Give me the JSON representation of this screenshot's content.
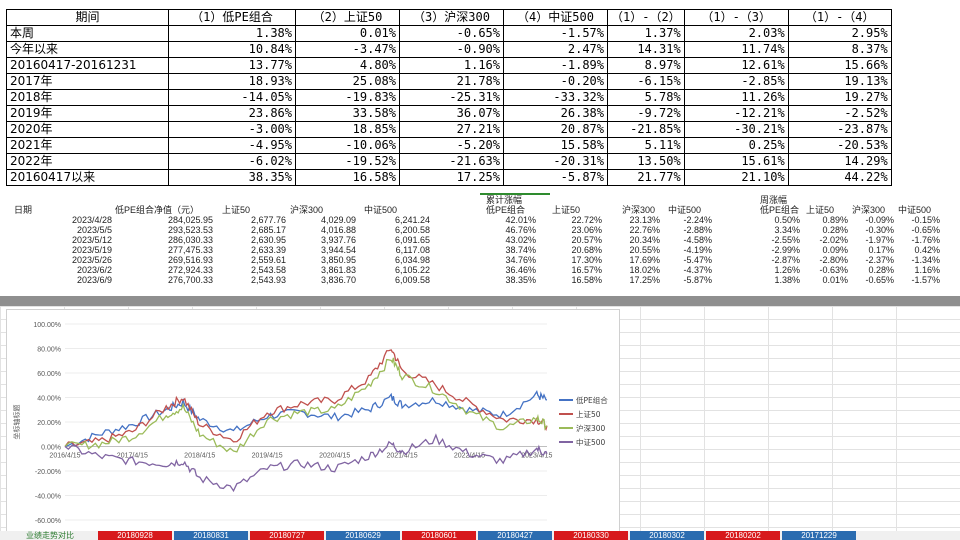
{
  "summary": {
    "headers": [
      "期间",
      "（1）低PE组合",
      "（2）上证50",
      "（3）沪深300",
      "（4）中证500",
      "（1）-（2）",
      "（1）-（3）",
      "（1）-（4）"
    ],
    "rows": [
      [
        "本周",
        "1.38%",
        "0.01%",
        "-0.65%",
        "-1.57%",
        "1.37%",
        "2.03%",
        "2.95%"
      ],
      [
        "今年以来",
        "10.84%",
        "-3.47%",
        "-0.90%",
        "2.47%",
        "14.31%",
        "11.74%",
        "8.37%"
      ],
      [
        "20160417-20161231",
        "13.77%",
        "4.80%",
        "1.16%",
        "-1.89%",
        "8.97%",
        "12.61%",
        "15.66%"
      ],
      [
        "2017年",
        "18.93%",
        "25.08%",
        "21.78%",
        "-0.20%",
        "-6.15%",
        "-2.85%",
        "19.13%"
      ],
      [
        "2018年",
        "-14.05%",
        "-19.83%",
        "-25.31%",
        "-33.32%",
        "5.78%",
        "11.26%",
        "19.27%"
      ],
      [
        "2019年",
        "23.86%",
        "33.58%",
        "36.07%",
        "26.38%",
        "-9.72%",
        "-12.21%",
        "-2.52%"
      ],
      [
        "2020年",
        "-3.00%",
        "18.85%",
        "27.21%",
        "20.87%",
        "-21.85%",
        "-30.21%",
        "-23.87%"
      ],
      [
        "2021年",
        "-4.95%",
        "-10.06%",
        "-5.20%",
        "15.58%",
        "5.11%",
        "0.25%",
        "-20.53%"
      ],
      [
        "2022年",
        "-6.02%",
        "-19.52%",
        "-21.63%",
        "-20.31%",
        "13.50%",
        "15.61%",
        "14.29%"
      ],
      [
        "20160417以来",
        "38.35%",
        "16.58%",
        "17.25%",
        "-5.87%",
        "21.77%",
        "21.10%",
        "44.22%"
      ]
    ]
  },
  "weekly": {
    "group_cum": "累计涨幅",
    "group_week": "周涨幅",
    "headers": [
      "日期",
      "低PE组合净值（元）",
      "上证50",
      "沪深300",
      "中证500",
      "低PE组合",
      "上证50",
      "沪深300",
      "中证500",
      "低PE组合",
      "上证50",
      "沪深300",
      "中证500"
    ],
    "rows": [
      [
        "2023/4/28",
        "284,025.95",
        "2,677.76",
        "4,029.09",
        "6,241.24",
        "42.01%",
        "22.72%",
        "23.13%",
        "-2.24%",
        "0.50%",
        "0.89%",
        "-0.09%",
        "-0.15%"
      ],
      [
        "2023/5/5",
        "293,523.53",
        "2,685.17",
        "4,016.88",
        "6,200.58",
        "46.76%",
        "23.06%",
        "22.76%",
        "-2.88%",
        "3.34%",
        "0.28%",
        "-0.30%",
        "-0.65%"
      ],
      [
        "2023/5/12",
        "286,030.33",
        "2,630.95",
        "3,937.76",
        "6,091.65",
        "43.02%",
        "20.57%",
        "20.34%",
        "-4.58%",
        "-2.55%",
        "-2.02%",
        "-1.97%",
        "-1.76%"
      ],
      [
        "2023/5/19",
        "277,475.33",
        "2,633.39",
        "3,944.54",
        "6,117.08",
        "38.74%",
        "20.68%",
        "20.55%",
        "-4.19%",
        "-2.99%",
        "0.09%",
        "0.17%",
        "0.42%"
      ],
      [
        "2023/5/26",
        "269,516.93",
        "2,559.61",
        "3,850.95",
        "6,034.98",
        "34.76%",
        "17.30%",
        "17.69%",
        "-5.47%",
        "-2.87%",
        "-2.80%",
        "-2.37%",
        "-1.34%"
      ],
      [
        "2023/6/2",
        "272,924.33",
        "2,543.58",
        "3,861.83",
        "6,105.22",
        "36.46%",
        "16.57%",
        "18.02%",
        "-4.37%",
        "1.26%",
        "-0.63%",
        "0.28%",
        "1.16%"
      ],
      [
        "2023/6/9",
        "276,700.33",
        "2,543.93",
        "3,836.70",
        "6,009.58",
        "38.35%",
        "16.58%",
        "17.25%",
        "-5.87%",
        "1.38%",
        "0.01%",
        "-0.65%",
        "-1.57%"
      ]
    ]
  },
  "chart_data": {
    "type": "line",
    "ylabel": "坐标轴标题",
    "ylim": [
      -60,
      100
    ],
    "yticks": [
      "100.00%",
      "80.00%",
      "60.00%",
      "40.00%",
      "20.00%",
      "0.00%",
      "-20.00%",
      "-40.00%",
      "-60.00%"
    ],
    "xticks": [
      "2016/4/15",
      "2017/4/15",
      "2018/4/15",
      "2019/4/15",
      "2020/4/15",
      "2021/4/15",
      "2022/4/15",
      "2023/4/15"
    ],
    "x": [
      "2016/4/15",
      "2016/10/15",
      "2017/4/15",
      "2017/10/15",
      "2018/1/15",
      "2018/4/15",
      "2018/10/15",
      "2019/4/15",
      "2019/10/15",
      "2020/4/15",
      "2020/10/15",
      "2021/2/15",
      "2021/4/15",
      "2021/10/15",
      "2022/4/15",
      "2022/10/15",
      "2023/4/15",
      "2023/6/9"
    ],
    "series": [
      {
        "name": "低PE组合",
        "color": "#4472C4",
        "values": [
          0,
          10,
          18,
          30,
          36,
          22,
          12,
          25,
          28,
          24,
          30,
          40,
          34,
          38,
          30,
          26,
          42,
          38
        ]
      },
      {
        "name": "上证50",
        "color": "#C0504D",
        "values": [
          0,
          4,
          12,
          32,
          40,
          18,
          5,
          28,
          35,
          38,
          55,
          80,
          62,
          50,
          35,
          22,
          22,
          17
        ]
      },
      {
        "name": "沪深300",
        "color": "#9BBB59",
        "values": [
          0,
          2,
          8,
          26,
          32,
          10,
          -5,
          22,
          28,
          30,
          50,
          72,
          58,
          46,
          28,
          15,
          23,
          17
        ]
      },
      {
        "name": "中证500",
        "color": "#8064A2",
        "values": [
          0,
          -8,
          -12,
          -14,
          -12,
          -26,
          -34,
          -18,
          -14,
          -18,
          -8,
          2,
          -4,
          6,
          -6,
          -12,
          -2,
          -6
        ]
      }
    ]
  },
  "sheet_tabs": [
    {
      "label": "业绩走势对比",
      "color": "#f0f0f0",
      "text": "#2e7d32"
    },
    {
      "label": "20180928",
      "color": "#d7191c",
      "text": "#ffffff"
    },
    {
      "label": "20180831",
      "color": "#2b6cb0",
      "text": "#ffffff"
    },
    {
      "label": "20180727",
      "color": "#d7191c",
      "text": "#ffffff"
    },
    {
      "label": "20180629",
      "color": "#2b6cb0",
      "text": "#ffffff"
    },
    {
      "label": "20180601",
      "color": "#d7191c",
      "text": "#ffffff"
    },
    {
      "label": "20180427",
      "color": "#2b6cb0",
      "text": "#ffffff"
    },
    {
      "label": "20180330",
      "color": "#d7191c",
      "text": "#ffffff"
    },
    {
      "label": "20180302",
      "color": "#2b6cb0",
      "text": "#ffffff"
    },
    {
      "label": "20180202",
      "color": "#d7191c",
      "text": "#ffffff"
    },
    {
      "label": "20171229",
      "color": "#2b6cb0",
      "text": "#ffffff"
    }
  ]
}
